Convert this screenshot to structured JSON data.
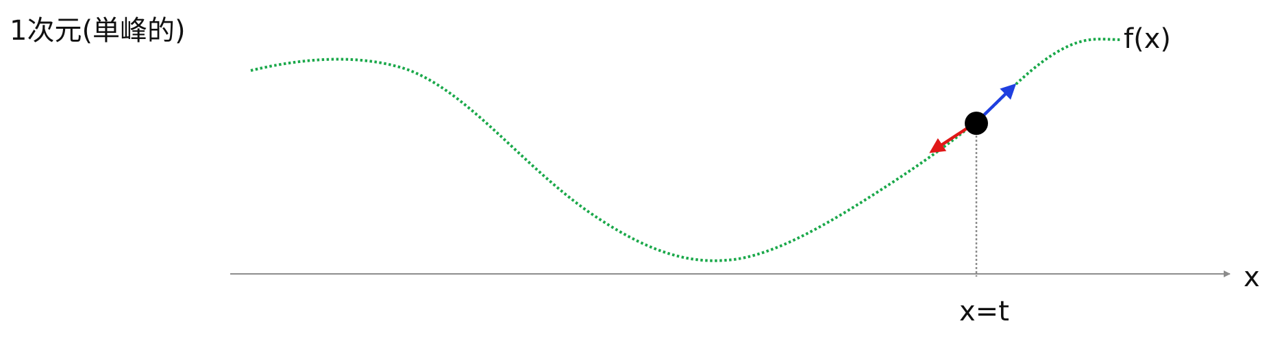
{
  "title": "1次元(単峰的)",
  "function_label": "f(x)",
  "axis_label": "x",
  "point_label": "x=t",
  "colors": {
    "curve": "#1aa84a",
    "axis": "#8c8c8c",
    "guide": "#8c8c8c",
    "point": "#000000",
    "arrow_up": "#1f3fe0",
    "arrow_down": "#e01818",
    "text": "#111111"
  }
}
